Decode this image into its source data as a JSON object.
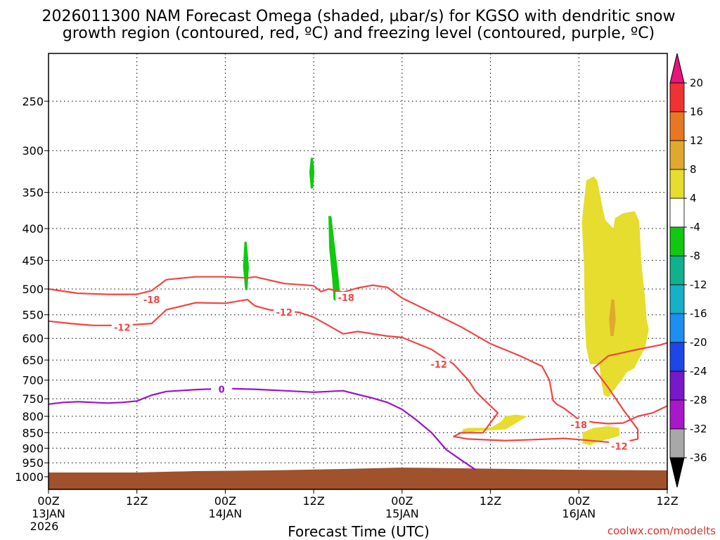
{
  "chart_data": {
    "type": "time-height cross-section",
    "title_line1": "2026011300 NAM Forecast Omega (shaded, µbar/s) for KGSO with dendritic snow",
    "title_line2": "growth region (contoured, red, ºC) and freezing level (contoured, purple, ºC)",
    "xlabel": "Forecast Time (UTC)",
    "xlim_hours": [
      0,
      84
    ],
    "x_ticks": [
      {
        "hour": 0,
        "l1": "00Z",
        "l2": "13JAN",
        "l3": "2026"
      },
      {
        "hour": 12,
        "l1": "12Z",
        "l2": "",
        "l3": ""
      },
      {
        "hour": 24,
        "l1": "00Z",
        "l2": "14JAN",
        "l3": ""
      },
      {
        "hour": 36,
        "l1": "12Z",
        "l2": "",
        "l3": ""
      },
      {
        "hour": 48,
        "l1": "00Z",
        "l2": "15JAN",
        "l3": ""
      },
      {
        "hour": 60,
        "l1": "12Z",
        "l2": "",
        "l3": ""
      },
      {
        "hour": 72,
        "l1": "00Z",
        "l2": "16JAN",
        "l3": ""
      },
      {
        "hour": 84,
        "l1": "12Z",
        "l2": "",
        "l3": ""
      }
    ],
    "y_ticks_hpa": [
      250,
      300,
      350,
      400,
      450,
      500,
      550,
      600,
      650,
      700,
      750,
      800,
      850,
      900,
      950,
      1000
    ],
    "ylim_hpa": [
      1000,
      200
    ],
    "colorbar": {
      "ticks": [
        20,
        16,
        12,
        8,
        4,
        -4,
        -8,
        -12,
        -16,
        -20,
        -24,
        -28,
        -32,
        -36
      ],
      "colors": [
        "#e8157a",
        "#f03232",
        "#e87722",
        "#e0a92e",
        "#e6dd2e",
        "#ffffff",
        "#10c810",
        "#12b08c",
        "#16b0c8",
        "#1e8ef0",
        "#1e46e6",
        "#7818c8",
        "#a818c8",
        "#a8a8a8",
        "#000000"
      ]
    },
    "series": [
      {
        "name": "-18C isotherm (snow growth upper)",
        "color": "#f04545",
        "label": "-18",
        "points": [
          [
            0,
            500
          ],
          [
            4,
            508
          ],
          [
            8,
            510
          ],
          [
            12,
            510
          ],
          [
            14,
            503
          ],
          [
            16,
            483
          ],
          [
            20,
            478
          ],
          [
            24,
            478
          ],
          [
            27,
            480
          ],
          [
            28,
            478
          ],
          [
            32,
            490
          ],
          [
            36,
            494
          ],
          [
            37,
            505
          ],
          [
            38,
            500
          ],
          [
            40,
            506
          ],
          [
            42,
            498
          ],
          [
            44,
            493
          ],
          [
            46,
            497
          ],
          [
            48,
            517
          ],
          [
            52,
            545
          ],
          [
            56,
            575
          ],
          [
            60,
            612
          ],
          [
            64,
            640
          ],
          [
            67,
            665
          ],
          [
            68,
            700
          ],
          [
            68.5,
            755
          ],
          [
            69,
            765
          ],
          [
            70,
            777
          ],
          [
            72,
            810
          ],
          [
            74,
            818
          ],
          [
            76,
            822
          ],
          [
            78,
            820
          ],
          [
            80,
            800
          ],
          [
            82,
            790
          ],
          [
            84,
            770
          ]
        ]
      },
      {
        "name": "-12C isotherm (snow growth lower)",
        "color": "#f04545",
        "label": "-12",
        "points": [
          [
            0,
            563
          ],
          [
            3,
            568
          ],
          [
            6,
            572
          ],
          [
            10,
            572
          ],
          [
            14,
            568
          ],
          [
            16,
            540
          ],
          [
            20,
            526
          ],
          [
            24,
            527
          ],
          [
            27,
            520
          ],
          [
            28,
            532
          ],
          [
            30,
            540
          ],
          [
            34,
            545
          ],
          [
            36,
            555
          ],
          [
            38,
            572
          ],
          [
            40,
            590
          ],
          [
            42,
            585
          ],
          [
            46,
            595
          ],
          [
            48,
            598
          ],
          [
            52,
            625
          ],
          [
            55,
            660
          ],
          [
            57,
            700
          ],
          [
            58,
            730
          ],
          [
            59,
            750
          ],
          [
            60,
            770
          ],
          [
            61,
            790
          ],
          [
            59,
            850
          ],
          [
            56,
            850
          ],
          [
            55,
            862
          ],
          [
            57,
            870
          ],
          [
            62,
            875
          ],
          [
            66,
            872
          ],
          [
            70,
            868
          ],
          [
            72,
            872
          ],
          [
            76,
            880
          ],
          [
            78,
            880
          ],
          [
            80,
            870
          ],
          [
            80,
            840
          ],
          [
            78,
            780
          ],
          [
            76,
            720
          ],
          [
            74,
            670
          ],
          [
            76,
            640
          ],
          [
            80,
            625
          ],
          [
            83,
            615
          ],
          [
            84,
            610
          ]
        ]
      },
      {
        "name": "0C freezing level",
        "color": "#9a14c8",
        "label": "0",
        "points": [
          [
            0,
            765
          ],
          [
            2,
            760
          ],
          [
            4,
            758
          ],
          [
            6,
            760
          ],
          [
            8,
            762
          ],
          [
            10,
            760
          ],
          [
            12,
            756
          ],
          [
            14,
            740
          ],
          [
            16,
            730
          ],
          [
            20,
            725
          ],
          [
            24,
            722
          ],
          [
            26,
            723
          ],
          [
            28,
            724
          ],
          [
            32,
            728
          ],
          [
            36,
            732
          ],
          [
            38,
            730
          ],
          [
            40,
            728
          ],
          [
            42,
            738
          ],
          [
            44,
            748
          ],
          [
            46,
            760
          ],
          [
            48,
            780
          ],
          [
            50,
            812
          ],
          [
            52,
            850
          ],
          [
            54,
            905
          ],
          [
            56,
            940
          ],
          [
            58,
            975
          ]
        ]
      }
    ],
    "shaded_regions": [
      {
        "name": "omega -8 to -4 (green)",
        "color": "#10c810",
        "points": [
          [
            26.6,
            420
          ],
          [
            26.9,
            420
          ],
          [
            27.2,
            460
          ],
          [
            27.0,
            502
          ],
          [
            26.7,
            502
          ],
          [
            26.4,
            460
          ]
        ]
      },
      {
        "name": "omega -8 to -4 (green)",
        "color": "#10c810",
        "points": [
          [
            35.6,
            308
          ],
          [
            35.9,
            308
          ],
          [
            36.1,
            325
          ],
          [
            35.9,
            345
          ],
          [
            35.6,
            345
          ],
          [
            35.4,
            325
          ]
        ]
      },
      {
        "name": "omega -8 to -4 (green)",
        "color": "#10c810",
        "points": [
          [
            38.0,
            382
          ],
          [
            38.4,
            382
          ],
          [
            38.8,
            420
          ],
          [
            39.3,
            470
          ],
          [
            39.6,
            510
          ],
          [
            39.2,
            525
          ],
          [
            38.7,
            520
          ],
          [
            38.5,
            480
          ],
          [
            38.1,
            430
          ]
        ]
      },
      {
        "name": "omega 4 to 8 (yellow)",
        "color": "#e6dd2e",
        "points": [
          [
            73.0,
            335
          ],
          [
            74.0,
            330
          ],
          [
            74.5,
            335
          ],
          [
            75.3,
            375
          ],
          [
            75.6,
            388
          ],
          [
            76.7,
            400
          ],
          [
            76.9,
            385
          ],
          [
            78.0,
            378
          ],
          [
            79.6,
            375
          ],
          [
            80.2,
            390
          ],
          [
            80.5,
            455
          ],
          [
            81.0,
            520
          ],
          [
            81.2,
            560
          ],
          [
            81.5,
            580
          ],
          [
            81.0,
            620
          ],
          [
            79.5,
            670
          ],
          [
            78.5,
            680
          ],
          [
            77.8,
            700
          ],
          [
            77.0,
            720
          ],
          [
            76.0,
            745
          ],
          [
            75.4,
            740
          ],
          [
            75.0,
            700
          ],
          [
            74.8,
            660
          ],
          [
            73.5,
            660
          ],
          [
            73.0,
            620
          ],
          [
            72.8,
            560
          ],
          [
            72.7,
            460
          ],
          [
            72.4,
            390
          ]
        ]
      },
      {
        "name": "omega 8 to 12 (orange)",
        "color": "#e0a92e",
        "points": [
          [
            76.4,
            520
          ],
          [
            76.8,
            520
          ],
          [
            77.0,
            560
          ],
          [
            76.7,
            595
          ],
          [
            76.3,
            595
          ],
          [
            76.1,
            560
          ]
        ]
      },
      {
        "name": "omega 4 to 8 (yellow)",
        "color": "#e6dd2e",
        "points": [
          [
            56.2,
            840
          ],
          [
            57.0,
            835
          ],
          [
            60.0,
            835
          ],
          [
            61.5,
            815
          ],
          [
            62.0,
            800
          ],
          [
            63.5,
            795
          ],
          [
            65.0,
            800
          ],
          [
            63.5,
            820
          ],
          [
            62.0,
            840
          ],
          [
            58.0,
            845
          ],
          [
            56.2,
            855
          ]
        ]
      },
      {
        "name": "omega 4 to 8 (yellow)",
        "color": "#e6dd2e",
        "points": [
          [
            72.5,
            850
          ],
          [
            74.0,
            835
          ],
          [
            76.0,
            830
          ],
          [
            77.5,
            835
          ],
          [
            77.5,
            860
          ],
          [
            76.0,
            870
          ],
          [
            74.5,
            880
          ],
          [
            73.5,
            890
          ],
          [
            72.5,
            885
          ]
        ]
      }
    ],
    "contour_labels": [
      {
        "text": "-18",
        "hour": 14.0,
        "hpa": 520,
        "color": "#f04545"
      },
      {
        "text": "-18",
        "hour": 40.4,
        "hpa": 516,
        "color": "#f04545"
      },
      {
        "text": "-18",
        "hour": 72.0,
        "hpa": 825,
        "color": "#f04545"
      },
      {
        "text": "-12",
        "hour": 10.0,
        "hpa": 576,
        "color": "#f04545"
      },
      {
        "text": "-12",
        "hour": 32.0,
        "hpa": 545,
        "color": "#f04545"
      },
      {
        "text": "-12",
        "hour": 53.0,
        "hpa": 660,
        "color": "#f04545"
      },
      {
        "text": "-12",
        "hour": 77.5,
        "hpa": 893,
        "color": "#f04545"
      },
      {
        "text": "0",
        "hour": 23.5,
        "hpa": 724,
        "color": "#9a14c8"
      }
    ],
    "terrain_color": "#a0522d",
    "credit": "coolwx.com/modelts"
  }
}
